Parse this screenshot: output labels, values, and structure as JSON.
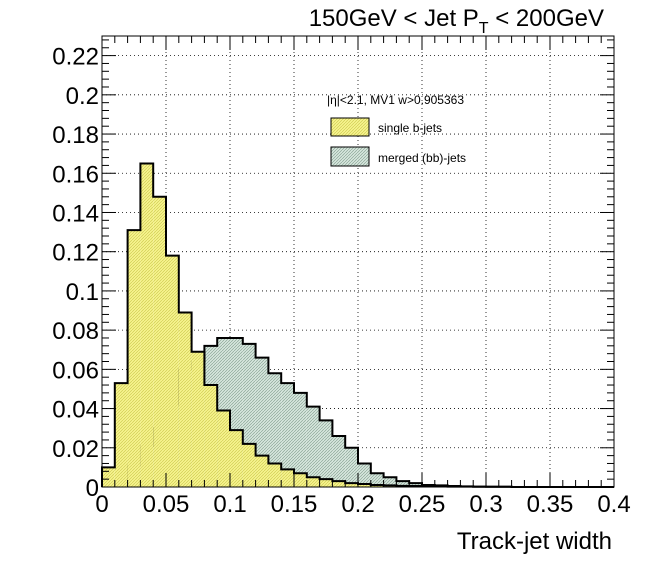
{
  "chart_data": {
    "type": "histogram",
    "title": {
      "main": "150GeV < Jet P",
      "sub": "T",
      "tail": " < 200GeV"
    },
    "xlabel": "Track-jet width",
    "ylabel": "",
    "xlim": [
      0,
      0.4
    ],
    "ylim": [
      0,
      0.23
    ],
    "x_ticks": [
      "0",
      "0.05",
      "0.1",
      "0.15",
      "0.2",
      "0.25",
      "0.3",
      "0.35",
      "0.4"
    ],
    "y_ticks": [
      "0",
      "0.02",
      "0.04",
      "0.06",
      "0.08",
      "0.1",
      "0.12",
      "0.14",
      "0.16",
      "0.18",
      "0.2",
      "0.22"
    ],
    "grid": "dotted",
    "legend": {
      "header": "|η|<2.1, MV1 w>0.905363",
      "placement": "top-right",
      "entries": [
        "single b-jets",
        "merged (bb)-jets"
      ]
    },
    "bin_width": 0.01,
    "series": [
      {
        "name": "merged (bb)-jets",
        "color": "#cfe0d6",
        "hatch": true,
        "values": [
          0.001,
          0.003,
          0.011,
          0.021,
          0.03,
          0.042,
          0.06,
          0.064,
          0.072,
          0.076,
          0.076,
          0.073,
          0.066,
          0.058,
          0.053,
          0.048,
          0.041,
          0.034,
          0.026,
          0.02,
          0.012,
          0.007,
          0.005,
          0.003,
          0.002,
          0.001,
          0.0008,
          0.0005,
          0.0003,
          0.0002,
          0.0001,
          0.0001,
          0.0,
          0.0,
          0.0,
          0.0,
          0.0,
          0.0,
          0.0,
          0.0
        ]
      },
      {
        "name": "single b-jets",
        "color": "#f6f38d",
        "hatch": true,
        "values": [
          0.01,
          0.053,
          0.131,
          0.165,
          0.148,
          0.118,
          0.089,
          0.069,
          0.052,
          0.039,
          0.029,
          0.022,
          0.016,
          0.012,
          0.009,
          0.007,
          0.005,
          0.004,
          0.003,
          0.002,
          0.0015,
          0.001,
          0.0008,
          0.0006,
          0.0005,
          0.0004,
          0.0003,
          0.0002,
          0.0002,
          0.0001,
          0.0001,
          0.0001,
          0.0,
          0.0,
          0.0,
          0.0,
          0.0,
          0.0,
          0.0,
          0.0
        ]
      }
    ]
  }
}
